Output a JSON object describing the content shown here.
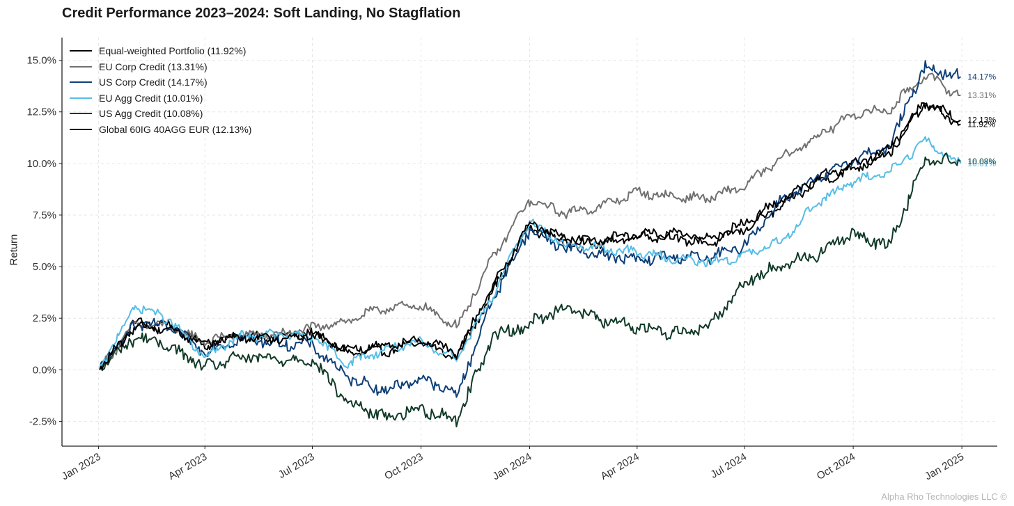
{
  "chart_data": {
    "type": "line",
    "title": "Credit Performance 2023–2024: Soft Landing, No Stagflation",
    "ylabel": "Return",
    "xlabel": "",
    "x_ticks": [
      "Jan 2023",
      "Apr 2023",
      "Jul 2023",
      "Oct 2023",
      "Jan 2024",
      "Apr 2024",
      "Jul 2024",
      "Oct 2024",
      "Jan 2025"
    ],
    "y_ticks": [
      "15.0%",
      "12.5%",
      "10.0%",
      "7.5%",
      "5.0%",
      "2.5%",
      "0.0%",
      "-2.5%"
    ],
    "y_tick_values": [
      15.0,
      12.5,
      10.0,
      7.5,
      5.0,
      2.5,
      0.0,
      -2.5
    ],
    "ylim": [
      -3.7,
      16.1
    ],
    "xlim": [
      "2022-12-01",
      "2025-01-31"
    ],
    "grid": true,
    "legend_position": "top-left",
    "x": [
      "2023-01-02",
      "2023-02-01",
      "2023-03-01",
      "2023-04-01",
      "2023-05-01",
      "2023-06-01",
      "2023-07-01",
      "2023-08-01",
      "2023-09-01",
      "2023-10-01",
      "2023-11-01",
      "2023-12-01",
      "2024-01-01",
      "2024-02-01",
      "2024-03-01",
      "2024-04-01",
      "2024-05-01",
      "2024-06-01",
      "2024-07-01",
      "2024-08-01",
      "2024-09-01",
      "2024-10-01",
      "2024-11-01",
      "2024-12-01",
      "2024-12-31"
    ],
    "series": [
      {
        "name": "Equal-weighted Portfolio (11.92%)",
        "color": "#000000",
        "end_label": "11.92%",
        "values": [
          0.0,
          2.3,
          2.2,
          1.2,
          1.7,
          1.6,
          1.8,
          0.8,
          0.9,
          1.3,
          0.6,
          3.8,
          6.9,
          6.2,
          6.1,
          6.5,
          6.4,
          6.1,
          6.8,
          7.9,
          9.1,
          9.7,
          10.5,
          12.9,
          11.9
        ]
      },
      {
        "name": "EU Corp Credit (13.31%)",
        "color": "#707070",
        "end_label": "13.31%",
        "values": [
          0.0,
          2.2,
          2.1,
          1.4,
          1.7,
          1.7,
          2.0,
          2.4,
          3.0,
          3.1,
          2.1,
          5.4,
          8.2,
          7.6,
          7.9,
          8.6,
          8.4,
          8.3,
          8.9,
          10.2,
          11.3,
          12.4,
          12.6,
          14.3,
          13.3
        ]
      },
      {
        "name": "US Corp Credit (14.17%)",
        "color": "#0d3f78",
        "end_label": "14.17%",
        "values": [
          0.0,
          2.2,
          2.1,
          0.9,
          1.5,
          1.3,
          1.2,
          -0.4,
          -1.0,
          -0.4,
          -1.2,
          3.4,
          6.8,
          5.9,
          5.6,
          5.3,
          5.5,
          5.4,
          6.0,
          8.2,
          9.2,
          10.2,
          10.8,
          14.7,
          14.2
        ]
      },
      {
        "name": "EU Agg Credit (10.01%)",
        "color": "#56bde6",
        "end_label": "10.01%",
        "values": [
          0.0,
          3.1,
          2.5,
          0.6,
          1.6,
          1.7,
          1.6,
          0.3,
          1.0,
          1.3,
          0.6,
          3.6,
          7.2,
          6.0,
          5.9,
          5.7,
          5.4,
          5.2,
          5.5,
          6.2,
          8.1,
          9.1,
          9.6,
          11.1,
          10.0
        ]
      },
      {
        "name": "US Agg Credit (10.08%)",
        "color": "#113a28",
        "end_label": "10.08%",
        "values": [
          0.0,
          1.6,
          1.2,
          0.1,
          0.6,
          0.5,
          0.5,
          -1.6,
          -2.3,
          -1.9,
          -2.4,
          1.6,
          2.2,
          3.1,
          2.4,
          2.1,
          1.8,
          2.1,
          4.2,
          5.1,
          5.6,
          6.6,
          6.0,
          10.2,
          10.1
        ]
      },
      {
        "name": "Global 60IG 40AGG EUR (12.13%)",
        "color": "#000000",
        "end_label": "12.13%",
        "values": [
          0.0,
          2.1,
          2.0,
          1.3,
          1.6,
          1.5,
          1.7,
          1.0,
          1.2,
          1.5,
          0.8,
          4.0,
          7.1,
          6.4,
          6.3,
          6.6,
          6.6,
          6.4,
          7.1,
          8.2,
          9.3,
          9.9,
          10.7,
          13.0,
          12.1
        ]
      }
    ]
  },
  "watermark": "Alpha Rho Technologies LLC ©"
}
